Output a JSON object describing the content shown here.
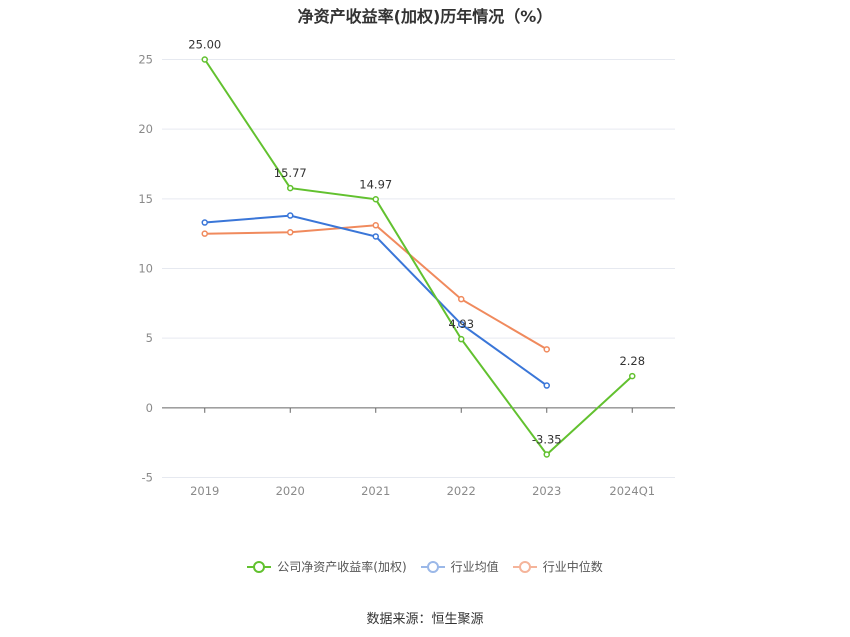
{
  "title": "净资产收益率(加权)历年情况（%）",
  "source": "数据来源：恒生聚源",
  "chart_data": {
    "type": "line",
    "categories": [
      "2019",
      "2020",
      "2021",
      "2022",
      "2023",
      "2024Q1"
    ],
    "ylim": [
      -5,
      25
    ],
    "yticks": [
      -5,
      0,
      5,
      10,
      15,
      20,
      25
    ],
    "grid": true,
    "legend_position": "bottom",
    "series": [
      {
        "name": "公司净资产收益率(加权)",
        "color": "#62c12f",
        "values": [
          25.0,
          15.77,
          14.97,
          4.93,
          -3.35,
          2.28
        ],
        "labels": [
          "25.00",
          "15.77",
          "14.97",
          "4.93",
          "-3.35",
          "2.28"
        ]
      },
      {
        "name": "行业均值",
        "color": "#3a76d8",
        "values": [
          13.3,
          13.8,
          12.3,
          6.0,
          1.6,
          null
        ]
      },
      {
        "name": "行业中位数",
        "color": "#f08a5d",
        "values": [
          12.5,
          12.6,
          13.1,
          7.8,
          4.2,
          null
        ]
      }
    ]
  }
}
